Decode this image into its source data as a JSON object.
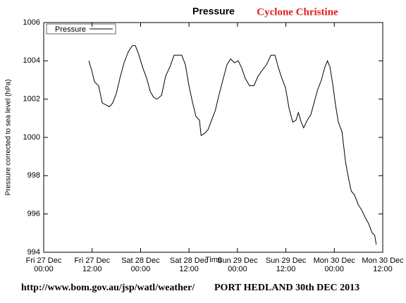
{
  "chart_data": {
    "type": "line",
    "title": "Pressure",
    "subtitle": "Cyclone Christine",
    "x_label": "Time",
    "y_label": "Pressure corrected to sea level (hPa)",
    "footer_left": "http://www.bom.gov.au/jsp/watl/weather/",
    "footer_right": "PORT HEDLAND 30th DEC 2013",
    "legend": "upper left",
    "xlim": [
      0,
      84
    ],
    "xticks": [
      {
        "value": 0,
        "label": [
          "Fri 27 Dec",
          "00:00"
        ]
      },
      {
        "value": 12,
        "label": [
          "Fri 27 Dec",
          "12:00"
        ]
      },
      {
        "value": 24,
        "label": [
          "Sat 28 Dec",
          "00:00"
        ]
      },
      {
        "value": 36,
        "label": [
          "Sat 28 Dec",
          "12:00"
        ]
      },
      {
        "value": 48,
        "label": [
          "Sun 29 Dec",
          "00:00"
        ]
      },
      {
        "value": 60,
        "label": [
          "Sun 29 Dec",
          "12:00"
        ]
      },
      {
        "value": 72,
        "label": [
          "Mon 30 Dec",
          "00:00"
        ]
      },
      {
        "value": 84,
        "label": [
          "Mon 30 Dec",
          "12:00"
        ]
      }
    ],
    "ylim": [
      994,
      1006
    ],
    "yticks": [
      994,
      996,
      998,
      1000,
      1002,
      1004,
      1006
    ],
    "x": [
      11.2,
      11.9,
      12.6,
      13.6,
      14.5,
      15.4,
      16.3,
      17.1,
      18.0,
      18.9,
      19.9,
      21.0,
      22.0,
      22.7,
      23.6,
      24.6,
      25.5,
      26.4,
      27.2,
      28.1,
      29.2,
      30.2,
      31.3,
      32.3,
      33.4,
      34.2,
      35.1,
      36.0,
      36.8,
      37.7,
      38.6,
      39.0,
      39.8,
      40.7,
      41.6,
      42.5,
      43.3,
      44.4,
      45.4,
      46.3,
      47.3,
      48.2,
      49.1,
      49.9,
      51.0,
      52.1,
      53.1,
      54.1,
      55.2,
      56.3,
      57.3,
      58.2,
      59.0,
      59.9,
      60.8,
      61.7,
      62.5,
      63.1,
      63.8,
      64.4,
      65.3,
      66.2,
      67.1,
      67.9,
      68.8,
      69.7,
      70.3,
      70.9,
      71.6,
      72.3,
      73.0,
      73.9,
      74.8,
      75.5,
      76.2,
      77.0,
      77.9,
      78.8,
      79.7,
      80.5,
      81.4,
      82.0,
      82.4
    ],
    "series": [
      {
        "name": "Pressure",
        "color": "#000000",
        "values": [
          1004.0,
          1003.5,
          1002.9,
          1002.7,
          1001.8,
          1001.7,
          1001.6,
          1001.8,
          1002.3,
          1003.1,
          1003.9,
          1004.5,
          1004.8,
          1004.8,
          1004.3,
          1003.6,
          1003.1,
          1002.4,
          1002.1,
          1002.0,
          1002.2,
          1003.2,
          1003.7,
          1004.3,
          1004.3,
          1004.3,
          1003.8,
          1002.7,
          1001.9,
          1001.1,
          1000.9,
          1000.1,
          1000.2,
          1000.4,
          1000.9,
          1001.4,
          1002.1,
          1003.0,
          1003.8,
          1004.1,
          1003.9,
          1004.0,
          1003.6,
          1003.1,
          1002.7,
          1002.7,
          1003.2,
          1003.5,
          1003.8,
          1004.3,
          1004.3,
          1003.6,
          1003.1,
          1002.6,
          1001.5,
          1000.8,
          1000.9,
          1001.3,
          1000.8,
          1000.5,
          1000.9,
          1001.2,
          1001.9,
          1002.5,
          1003.0,
          1003.7,
          1004.0,
          1003.7,
          1002.8,
          1001.7,
          1000.8,
          1000.3,
          998.7,
          997.9,
          997.2,
          997.0,
          996.5,
          996.2,
          995.8,
          995.5,
          995.0,
          994.9,
          994.4
        ]
      }
    ]
  }
}
